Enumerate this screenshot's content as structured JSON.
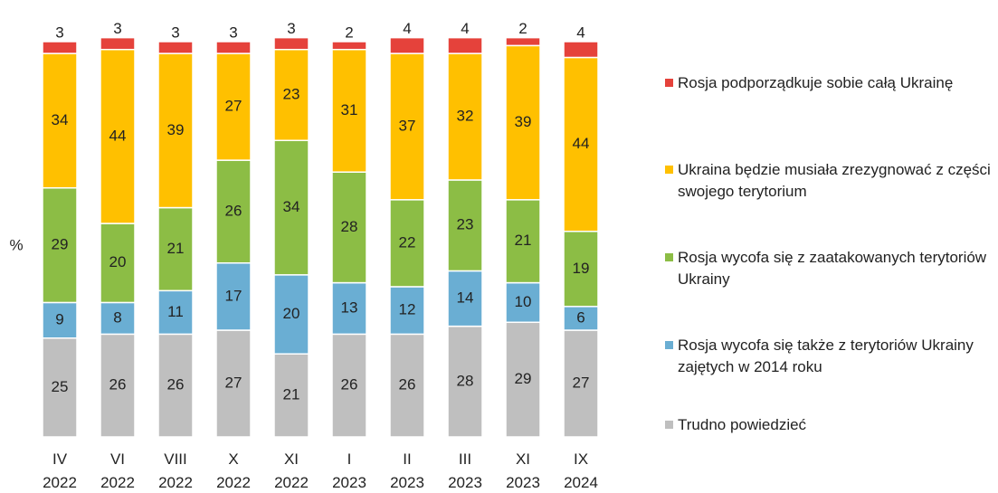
{
  "chart_data": {
    "type": "stacked_bar",
    "y_label": "%",
    "categories": [
      "IV 2022",
      "VI 2022",
      "VIII 2022",
      "X 2022",
      "XI 2022",
      "I 2023",
      "II 2023",
      "III 2023",
      "XI 2023",
      "IX 2024"
    ],
    "series": [
      {
        "name": "Trudno powiedzieć",
        "color": "#bfbfbf",
        "values": [
          25,
          26,
          26,
          27,
          21,
          26,
          26,
          28,
          29,
          27
        ]
      },
      {
        "name": "Rosja wycofa się także z terytoriów Ukrainy zajętych w 2014 roku",
        "color": "#6aaed3",
        "values": [
          9,
          8,
          11,
          17,
          20,
          13,
          12,
          14,
          10,
          6
        ]
      },
      {
        "name": "Rosja wycofa się z zaatakowanych terytoriów Ukrainy",
        "color": "#8cbd45",
        "values": [
          29,
          20,
          21,
          26,
          34,
          28,
          22,
          23,
          21,
          19
        ]
      },
      {
        "name": "Ukraina będzie musiała zrezygnować z części swojego terytorium",
        "color": "#ffc000",
        "values": [
          34,
          44,
          39,
          27,
          23,
          31,
          37,
          32,
          39,
          44
        ]
      },
      {
        "name": "Rosja podporządkuje sobie całą Ukrainę",
        "color": "#e5423b",
        "values": [
          3,
          3,
          3,
          3,
          3,
          2,
          4,
          4,
          2,
          4
        ]
      }
    ]
  }
}
